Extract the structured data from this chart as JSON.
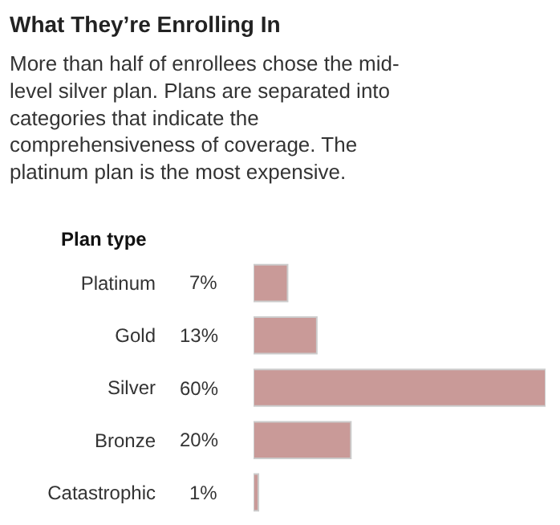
{
  "chart_data": {
    "type": "bar",
    "orientation": "horizontal",
    "title": "What They’re Enrolling In",
    "subtitle": "More than half of enrollees chose the mid-\nlevel silver plan. Plans are separated into\ncategories that indicate the\ncomprehensiveness of coverage. The\nplatinum plan is the most expensive.",
    "ylabel": "Plan type",
    "categories": [
      "Platinum",
      "Gold",
      "Silver",
      "Bronze",
      "Catastrophic"
    ],
    "values": [
      7,
      13,
      60,
      20,
      1
    ],
    "value_labels": [
      "7%",
      "13%",
      "60%",
      "20%",
      "1%"
    ],
    "color": "#c99a98",
    "xlim": [
      0,
      60
    ],
    "tick_labels": "y"
  }
}
